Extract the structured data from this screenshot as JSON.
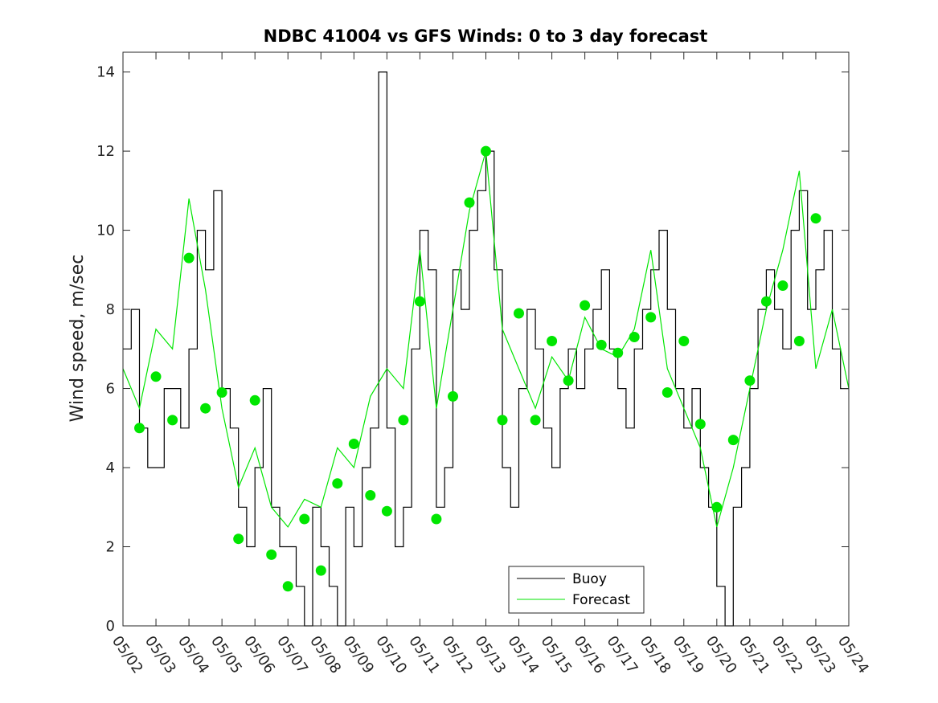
{
  "chart_data": {
    "type": "line",
    "title": "NDBC 41004 vs GFS Winds: 0 to 3 day forecast",
    "xlabel": "",
    "ylabel": "Wind speed, m/sec",
    "xlim": [
      "05/02",
      "05/24"
    ],
    "ylim": [
      0,
      14.5
    ],
    "x_ticks": [
      "05/02",
      "05/03",
      "05/04",
      "05/05",
      "05/06",
      "05/07",
      "05/08",
      "05/09",
      "05/10",
      "05/11",
      "05/12",
      "05/13",
      "05/14",
      "05/15",
      "05/16",
      "05/17",
      "05/18",
      "05/19",
      "05/20",
      "05/21",
      "05/22",
      "05/23",
      "05/24"
    ],
    "y_ticks": [
      0,
      2,
      4,
      6,
      8,
      10,
      12,
      14
    ],
    "grid": false,
    "legend": {
      "position": "bottom-center",
      "entries": [
        "Buoy",
        "Forecast"
      ]
    },
    "colors": {
      "buoy": "#000000",
      "forecast": "#00e600",
      "markers": "#00e600"
    },
    "series": [
      {
        "name": "Buoy",
        "style": "step",
        "x": [
          "05/02 00:00",
          "05/02 06:00",
          "05/02 12:00",
          "05/02 18:00",
          "05/03 00:00",
          "05/03 06:00",
          "05/03 12:00",
          "05/03 18:00",
          "05/04 00:00",
          "05/04 06:00",
          "05/04 12:00",
          "05/04 18:00",
          "05/05 00:00",
          "05/05 06:00",
          "05/05 12:00",
          "05/05 18:00",
          "05/06 00:00",
          "05/06 06:00",
          "05/06 12:00",
          "05/06 18:00",
          "05/07 00:00",
          "05/07 06:00",
          "05/07 12:00",
          "05/07 18:00",
          "05/08 00:00",
          "05/08 06:00",
          "05/08 12:00",
          "05/08 18:00",
          "05/09 00:00",
          "05/09 06:00",
          "05/09 12:00",
          "05/09 18:00",
          "05/10 00:00",
          "05/10 06:00",
          "05/10 12:00",
          "05/10 18:00",
          "05/11 00:00",
          "05/11 06:00",
          "05/11 12:00",
          "05/11 18:00",
          "05/12 00:00",
          "05/12 06:00",
          "05/12 12:00",
          "05/12 18:00",
          "05/13 00:00",
          "05/13 06:00",
          "05/13 12:00",
          "05/13 18:00",
          "05/14 00:00",
          "05/14 06:00",
          "05/14 12:00",
          "05/14 18:00",
          "05/15 00:00",
          "05/15 06:00",
          "05/15 12:00",
          "05/15 18:00",
          "05/16 00:00",
          "05/16 06:00",
          "05/16 12:00",
          "05/16 18:00",
          "05/17 00:00",
          "05/17 06:00",
          "05/17 12:00",
          "05/17 18:00",
          "05/18 00:00",
          "05/18 06:00",
          "05/18 12:00",
          "05/18 18:00",
          "05/19 00:00",
          "05/19 06:00",
          "05/19 12:00",
          "05/19 18:00",
          "05/20 00:00",
          "05/20 06:00",
          "05/20 12:00",
          "05/20 18:00",
          "05/21 00:00",
          "05/21 06:00",
          "05/21 12:00",
          "05/21 18:00",
          "05/22 00:00",
          "05/22 06:00",
          "05/22 12:00",
          "05/22 18:00",
          "05/23 00:00",
          "05/23 06:00",
          "05/23 12:00",
          "05/23 18:00",
          "05/24 00:00"
        ],
        "values": [
          7,
          8,
          5,
          4,
          4,
          6,
          6,
          5,
          7,
          10,
          9,
          11,
          6,
          5,
          3,
          2,
          4,
          6,
          3,
          2,
          2,
          1,
          0,
          3,
          2,
          1,
          0,
          3,
          2,
          4,
          5,
          14,
          5,
          2,
          3,
          7,
          10,
          9,
          3,
          4,
          9,
          8,
          10,
          11,
          12,
          9,
          4,
          3,
          6,
          8,
          7,
          5,
          4,
          6,
          7,
          6,
          7,
          8,
          9,
          7,
          6,
          5,
          7,
          8,
          9,
          10,
          8,
          6,
          5,
          6,
          4,
          3,
          1,
          0,
          3,
          4,
          6,
          8,
          9,
          8,
          7,
          10,
          11,
          8,
          9,
          10,
          7,
          6,
          6
        ]
      },
      {
        "name": "Forecast",
        "style": "line",
        "x": [
          "05/02 00:00",
          "05/02 12:00",
          "05/03 00:00",
          "05/03 12:00",
          "05/04 00:00",
          "05/04 12:00",
          "05/05 00:00",
          "05/05 12:00",
          "05/06 00:00",
          "05/06 12:00",
          "05/07 00:00",
          "05/07 12:00",
          "05/08 00:00",
          "05/08 12:00",
          "05/09 00:00",
          "05/09 12:00",
          "05/10 00:00",
          "05/10 12:00",
          "05/11 00:00",
          "05/11 12:00",
          "05/12 00:00",
          "05/12 12:00",
          "05/13 00:00",
          "05/13 12:00",
          "05/14 00:00",
          "05/14 12:00",
          "05/15 00:00",
          "05/15 12:00",
          "05/16 00:00",
          "05/16 12:00",
          "05/17 00:00",
          "05/17 12:00",
          "05/18 00:00",
          "05/18 12:00",
          "05/19 00:00",
          "05/19 12:00",
          "05/20 00:00",
          "05/20 12:00",
          "05/21 00:00",
          "05/21 12:00",
          "05/22 00:00",
          "05/22 12:00",
          "05/23 00:00",
          "05/23 12:00",
          "05/24 00:00"
        ],
        "values": [
          6.5,
          5.5,
          7.5,
          7.0,
          10.8,
          8.5,
          5.5,
          3.5,
          4.5,
          3.0,
          2.5,
          3.2,
          3.0,
          4.5,
          4.0,
          5.8,
          6.5,
          6.0,
          9.5,
          5.5,
          8.0,
          10.5,
          12.0,
          7.5,
          6.5,
          5.5,
          6.8,
          6.2,
          7.8,
          7.0,
          6.8,
          7.5,
          9.5,
          6.5,
          5.5,
          4.5,
          2.5,
          4.0,
          6.0,
          8.0,
          9.5,
          11.5,
          6.5,
          8.0,
          6.0
        ]
      }
    ],
    "markers": {
      "x": [
        "05/02 12:00",
        "05/03 00:00",
        "05/03 12:00",
        "05/04 00:00",
        "05/04 12:00",
        "05/05 00:00",
        "05/05 12:00",
        "05/06 00:00",
        "05/06 12:00",
        "05/07 00:00",
        "05/07 12:00",
        "05/08 00:00",
        "05/08 12:00",
        "05/09 00:00",
        "05/09 12:00",
        "05/10 00:00",
        "05/10 12:00",
        "05/11 00:00",
        "05/11 12:00",
        "05/12 00:00",
        "05/12 12:00",
        "05/13 00:00",
        "05/13 12:00",
        "05/14 00:00",
        "05/14 12:00",
        "05/15 00:00",
        "05/15 12:00",
        "05/16 00:00",
        "05/16 12:00",
        "05/17 00:00",
        "05/17 12:00",
        "05/18 00:00",
        "05/18 12:00",
        "05/19 00:00",
        "05/19 12:00",
        "05/20 00:00",
        "05/20 12:00",
        "05/21 00:00",
        "05/21 12:00",
        "05/22 00:00",
        "05/22 12:00",
        "05/23 00:00"
      ],
      "values": [
        5.0,
        6.3,
        5.2,
        9.3,
        5.5,
        5.9,
        2.2,
        5.7,
        1.8,
        1.0,
        2.7,
        1.4,
        3.6,
        4.6,
        3.3,
        2.9,
        5.2,
        8.2,
        2.7,
        5.8,
        10.7,
        12.0,
        5.2,
        7.9,
        5.2,
        7.2,
        6.2,
        8.1,
        7.1,
        6.9,
        7.3,
        7.8,
        5.9,
        7.2,
        5.1,
        3.0,
        4.7,
        6.2,
        8.2,
        8.6,
        7.2,
        10.3
      ]
    }
  }
}
